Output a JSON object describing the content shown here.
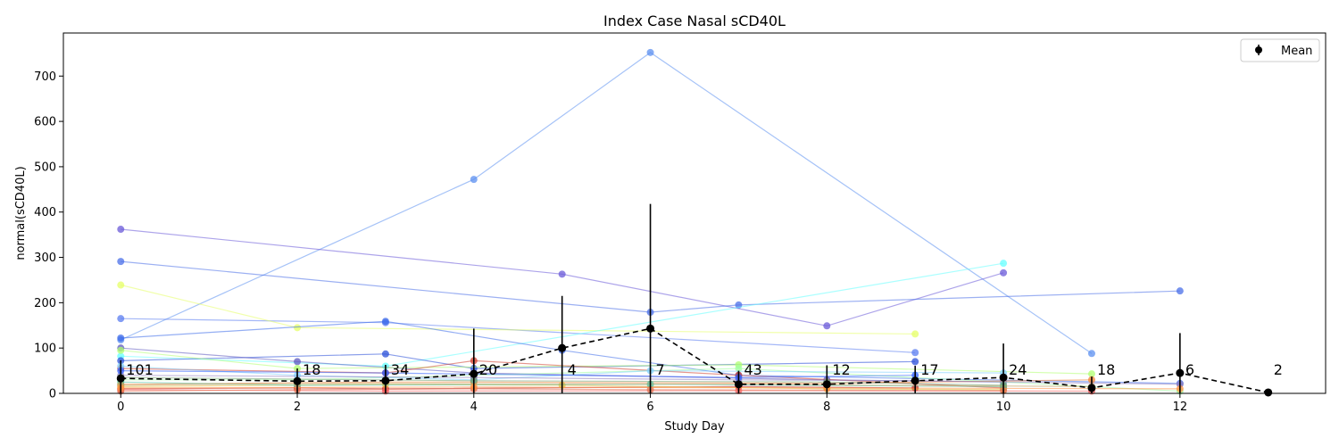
{
  "chart_data": {
    "type": "line",
    "title": "Index Case Nasal sCD40L",
    "xlabel": "Study Day",
    "ylabel": "normal(sCD40L)",
    "xlim": [
      -0.65,
      13.65
    ],
    "ylim": [
      0,
      795
    ],
    "x_ticks": [
      0,
      2,
      4,
      6,
      8,
      10,
      12
    ],
    "y_ticks": [
      0,
      100,
      200,
      300,
      400,
      500,
      600,
      700
    ],
    "grid": false,
    "legend": {
      "placement": "top-right",
      "entries": [
        "Mean"
      ]
    },
    "mean_series": {
      "name": "Mean",
      "color": "#000000",
      "points": [
        {
          "x": 0,
          "y": 33,
          "err": 40
        },
        {
          "x": 2,
          "y": 27,
          "err": 28
        },
        {
          "x": 3,
          "y": 28,
          "err": 35
        },
        {
          "x": 4,
          "y": 43,
          "err": 100
        },
        {
          "x": 5,
          "y": 100,
          "err": 115
        },
        {
          "x": 6,
          "y": 143,
          "err": 275
        },
        {
          "x": 7,
          "y": 20,
          "err": 30
        },
        {
          "x": 8,
          "y": 20,
          "err": 42
        },
        {
          "x": 9,
          "y": 28,
          "err": 33
        },
        {
          "x": 10,
          "y": 35,
          "err": 75
        },
        {
          "x": 11,
          "y": 12,
          "err": 25
        },
        {
          "x": 12,
          "y": 45,
          "err": 88
        },
        {
          "x": 13,
          "y": 2,
          "err": 0
        }
      ]
    },
    "counts": [
      {
        "x": 0,
        "label": "101"
      },
      {
        "x": 2,
        "label": "18"
      },
      {
        "x": 3,
        "label": "34"
      },
      {
        "x": 4,
        "label": "20"
      },
      {
        "x": 5,
        "label": "4"
      },
      {
        "x": 6,
        "label": "7"
      },
      {
        "x": 7,
        "label": "43"
      },
      {
        "x": 8,
        "label": "12"
      },
      {
        "x": 9,
        "label": "17"
      },
      {
        "x": 10,
        "label": "24"
      },
      {
        "x": 11,
        "label": "18"
      },
      {
        "x": 12,
        "label": "6"
      },
      {
        "x": 13,
        "label": "2"
      }
    ],
    "subject_series": [
      {
        "color": "#5b8ff0",
        "points": [
          [
            0,
            118
          ],
          [
            4,
            472
          ],
          [
            6,
            752
          ],
          [
            11,
            88
          ]
        ]
      },
      {
        "color": "#6a5ad8",
        "points": [
          [
            0,
            362
          ],
          [
            5,
            263
          ],
          [
            8,
            149
          ],
          [
            10,
            266
          ]
        ]
      },
      {
        "color": "#4a6fe8",
        "points": [
          [
            0,
            291
          ],
          [
            6,
            179
          ],
          [
            7,
            195
          ],
          [
            12,
            226
          ]
        ]
      },
      {
        "color": "#5a7cf0",
        "points": [
          [
            0,
            165
          ],
          [
            3,
            156
          ],
          [
            9,
            90
          ]
        ]
      },
      {
        "color": "#e6ff66",
        "points": [
          [
            0,
            239
          ],
          [
            2,
            145
          ],
          [
            9,
            131
          ]
        ]
      },
      {
        "color": "#66ffff",
        "points": [
          [
            0,
            82
          ],
          [
            3,
            60
          ],
          [
            10,
            287
          ]
        ]
      },
      {
        "color": "#3d6bea",
        "points": [
          [
            0,
            122
          ],
          [
            3,
            159
          ],
          [
            5,
            95
          ],
          [
            7,
            40
          ],
          [
            12,
            22
          ]
        ]
      },
      {
        "color": "#2a4fd8",
        "points": [
          [
            0,
            72
          ],
          [
            3,
            87
          ],
          [
            4,
            55
          ],
          [
            9,
            70
          ]
        ]
      },
      {
        "color": "#5e5ac0",
        "points": [
          [
            0,
            100
          ],
          [
            2,
            70
          ],
          [
            4,
            45
          ],
          [
            8,
            30
          ],
          [
            10,
            25
          ]
        ]
      },
      {
        "color": "#b0ff70",
        "points": [
          [
            0,
            95
          ],
          [
            2,
            55
          ],
          [
            7,
            63
          ],
          [
            11,
            43
          ]
        ]
      },
      {
        "color": "#d04030",
        "points": [
          [
            0,
            55
          ],
          [
            3,
            45
          ],
          [
            4,
            72
          ],
          [
            7,
            40
          ],
          [
            10,
            12
          ]
        ]
      },
      {
        "color": "#a0ffa0",
        "points": [
          [
            0,
            30
          ],
          [
            2,
            30
          ],
          [
            7,
            55
          ],
          [
            12,
            5
          ]
        ]
      },
      {
        "color": "#f08030",
        "points": [
          [
            0,
            20
          ],
          [
            3,
            25
          ],
          [
            4,
            25
          ],
          [
            8,
            22
          ],
          [
            11,
            30
          ]
        ]
      },
      {
        "color": "#80d0ff",
        "points": [
          [
            0,
            60
          ],
          [
            2,
            40
          ],
          [
            4,
            30
          ],
          [
            6,
            50
          ],
          [
            10,
            45
          ]
        ]
      },
      {
        "color": "#c02020",
        "points": [
          [
            0,
            10
          ],
          [
            2,
            12
          ],
          [
            3,
            10
          ],
          [
            7,
            15
          ],
          [
            9,
            12
          ]
        ]
      },
      {
        "color": "#e0c040",
        "points": [
          [
            0,
            15
          ],
          [
            3,
            20
          ],
          [
            5,
            18
          ],
          [
            8,
            10
          ],
          [
            10,
            8
          ]
        ]
      },
      {
        "color": "#9080c0",
        "points": [
          [
            0,
            40
          ],
          [
            4,
            35
          ],
          [
            7,
            30
          ],
          [
            9,
            28
          ],
          [
            12,
            20
          ]
        ]
      },
      {
        "color": "#50c0a0",
        "points": [
          [
            0,
            25
          ],
          [
            2,
            18
          ],
          [
            6,
            20
          ],
          [
            10,
            15
          ]
        ]
      },
      {
        "color": "#ff6060",
        "points": [
          [
            0,
            8
          ],
          [
            3,
            5
          ],
          [
            7,
            6
          ],
          [
            11,
            5
          ]
        ]
      },
      {
        "color": "#70a070",
        "points": [
          [
            0,
            35
          ],
          [
            4,
            28
          ],
          [
            8,
            25
          ],
          [
            10,
            18
          ]
        ]
      },
      {
        "color": "#e07050",
        "points": [
          [
            0,
            5
          ],
          [
            2,
            8
          ],
          [
            4,
            10
          ],
          [
            6,
            8
          ],
          [
            10,
            6
          ]
        ]
      },
      {
        "color": "#3060ff",
        "points": [
          [
            0,
            50
          ],
          [
            3,
            45
          ],
          [
            7,
            35
          ],
          [
            9,
            40
          ]
        ]
      },
      {
        "color": "#c0a060",
        "points": [
          [
            0,
            18
          ],
          [
            2,
            22
          ],
          [
            7,
            20
          ],
          [
            11,
            15
          ]
        ]
      },
      {
        "color": "#ff9040",
        "points": [
          [
            0,
            12
          ],
          [
            4,
            14
          ],
          [
            8,
            12
          ],
          [
            12,
            10
          ]
        ]
      }
    ]
  }
}
